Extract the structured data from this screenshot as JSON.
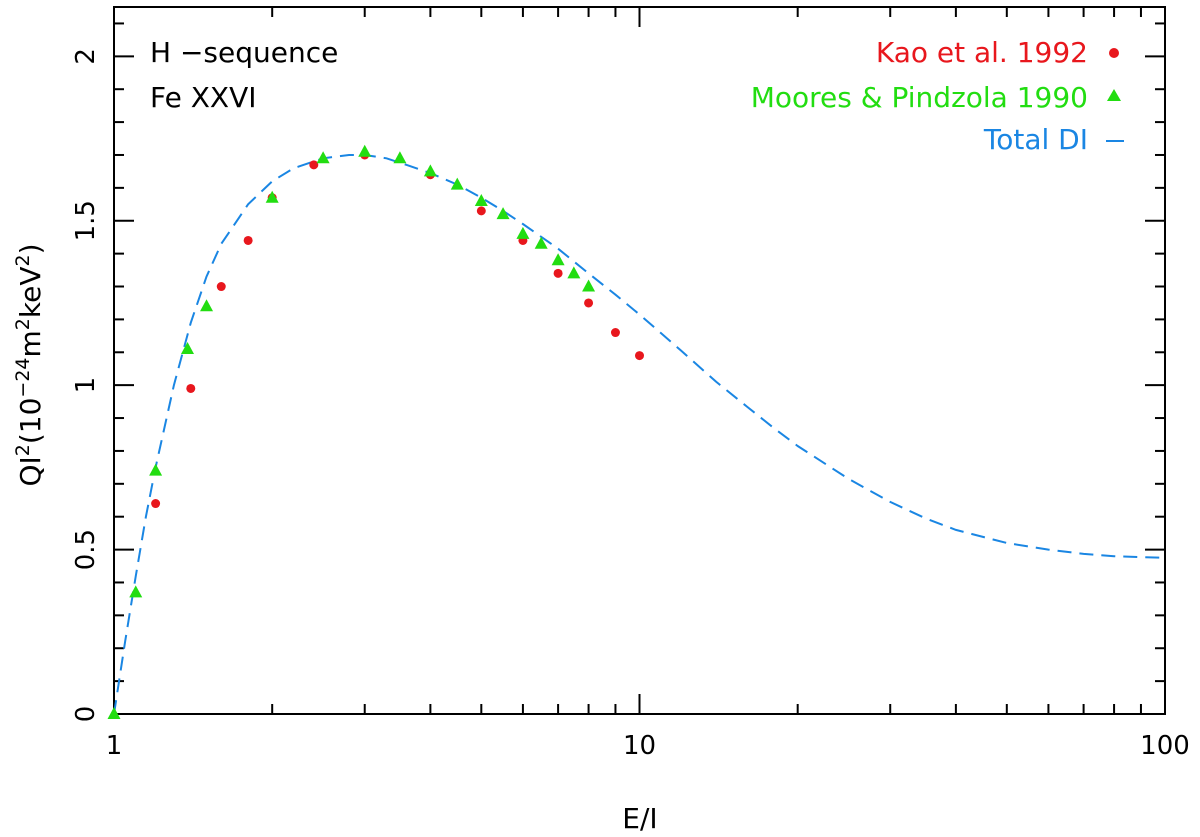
{
  "chart_data": {
    "type": "scatter",
    "title": "",
    "xlabel": "E/I",
    "ylabel_parts": {
      "base": "QI",
      "sup1": "2",
      "open": "(10",
      "sup2": "−24",
      "mid": "m",
      "sup3": "2",
      "unit": "keV",
      "sup4": "2",
      "close": ")"
    },
    "xscale": "log",
    "xlim": [
      1,
      100
    ],
    "ylim": [
      0,
      2.2
    ],
    "x_ticks": [
      {
        "value": 1,
        "label": "1"
      },
      {
        "value": 10,
        "label": "10"
      },
      {
        "value": 100,
        "label": "100"
      }
    ],
    "y_ticks": [
      {
        "value": 0,
        "label": "0"
      },
      {
        "value": 0.5,
        "label": "0.5"
      },
      {
        "value": 1,
        "label": "1"
      },
      {
        "value": 1.5,
        "label": "1.5"
      },
      {
        "value": 2,
        "label": "2"
      }
    ],
    "annotations": [
      "H −sequence",
      "Fe XXVI"
    ],
    "legend": [
      {
        "label": "Kao et al. 1992",
        "marker": "•",
        "color": "#e8171d"
      },
      {
        "label": "Moores & Pindzola 1990",
        "marker": "▲",
        "color": "#22dd11"
      },
      {
        "label": "Total DI",
        "marker": "—",
        "color": "#1a86e3"
      }
    ],
    "series": [
      {
        "name": "Kao et al. 1992",
        "kind": "points",
        "marker": "circle",
        "color": "#e8171d",
        "x": [
          1.2,
          1.4,
          1.6,
          1.8,
          2.0,
          2.4,
          3.0,
          4.0,
          5.0,
          6.0,
          7.0,
          8.0,
          9.0,
          10.0
        ],
        "y": [
          0.64,
          0.99,
          1.3,
          1.44,
          1.57,
          1.67,
          1.7,
          1.64,
          1.53,
          1.44,
          1.34,
          1.25,
          1.16,
          1.09
        ]
      },
      {
        "name": "Moores & Pindzola 1990",
        "kind": "points",
        "marker": "triangle",
        "color": "#22dd11",
        "x": [
          1.0,
          1.1,
          1.2,
          1.38,
          1.5,
          2.0,
          2.5,
          3.0,
          3.5,
          4.0,
          4.5,
          5.0,
          5.5,
          6.0,
          6.5,
          7.0,
          7.5,
          8.0
        ],
        "y": [
          0.0,
          0.37,
          0.74,
          1.11,
          1.24,
          1.57,
          1.69,
          1.71,
          1.69,
          1.65,
          1.61,
          1.56,
          1.52,
          1.46,
          1.43,
          1.38,
          1.34,
          1.3
        ]
      },
      {
        "name": "Total DI",
        "kind": "line",
        "dash": "dashed",
        "color": "#1a86e3",
        "x": [
          1.0,
          1.05,
          1.1,
          1.15,
          1.2,
          1.3,
          1.4,
          1.5,
          1.6,
          1.8,
          2.0,
          2.2,
          2.5,
          2.8,
          3.0,
          3.3,
          3.6,
          4.0,
          4.5,
          5.0,
          5.5,
          6.0,
          7.0,
          8.0,
          9.0,
          10.0,
          12.0,
          14.0,
          16.0,
          18.0,
          20.0,
          25.0,
          30.0,
          35.0,
          40.0,
          50.0,
          60.0,
          70.0,
          80.0,
          90.0,
          100.0
        ],
        "y": [
          0.0,
          0.22,
          0.42,
          0.6,
          0.75,
          1.0,
          1.19,
          1.33,
          1.43,
          1.55,
          1.62,
          1.66,
          1.69,
          1.7,
          1.7,
          1.69,
          1.67,
          1.645,
          1.61,
          1.57,
          1.53,
          1.49,
          1.415,
          1.34,
          1.275,
          1.215,
          1.105,
          1.01,
          0.935,
          0.87,
          0.815,
          0.715,
          0.645,
          0.595,
          0.56,
          0.52,
          0.5,
          0.487,
          0.48,
          0.477,
          0.475
        ]
      }
    ]
  }
}
